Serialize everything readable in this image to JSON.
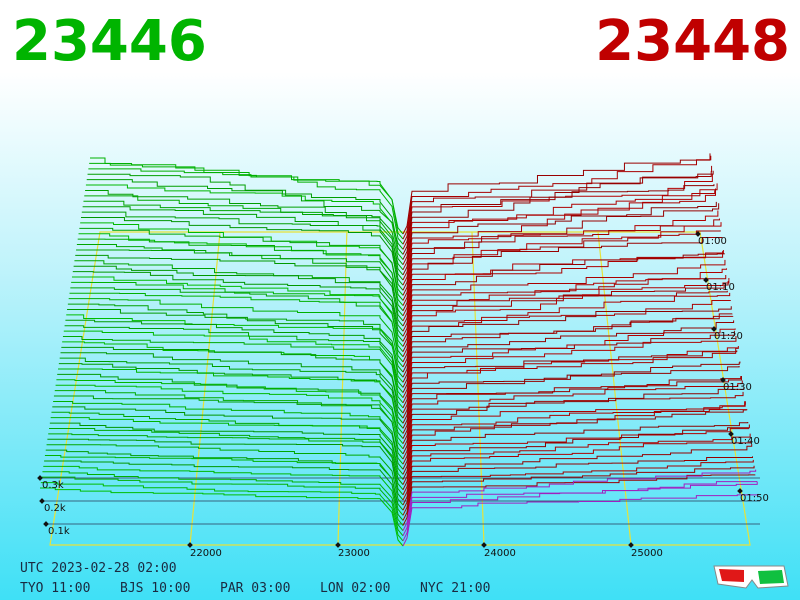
{
  "header": {
    "bid": "23446",
    "ask": "23448"
  },
  "price_axis": [
    "22000",
    "23000",
    "24000",
    "25000"
  ],
  "time_axis": [
    "01:00",
    "01:10",
    "01:20",
    "01:30",
    "01:40",
    "01:50"
  ],
  "depth_axis": [
    "0.3k",
    "0.2k",
    "0.1k"
  ],
  "footer": {
    "utc": "UTC 2023-02-28 02:00",
    "zones": [
      "TYO 11:00",
      "BJS 10:00",
      "PAR 03:00",
      "LON 02:00",
      "NYC 21:00"
    ]
  }
}
